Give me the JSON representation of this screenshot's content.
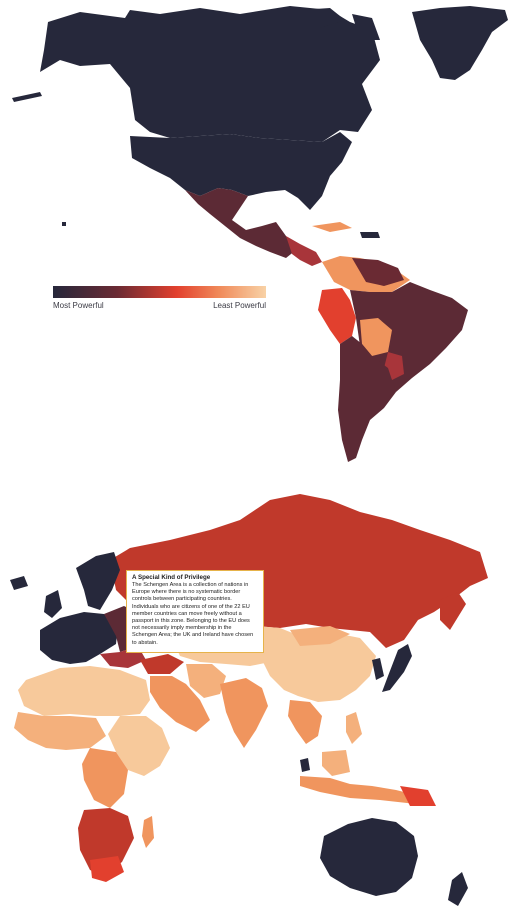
{
  "legend": {
    "min_label": "Most Powerful",
    "max_label": "Least Powerful",
    "scale_colors": [
      "#26283b",
      "#6a2a33",
      "#e2402e",
      "#f08a5a",
      "#f8d2a6"
    ]
  },
  "callout": {
    "title": "A Special Kind of Privilege",
    "body": "The Schengen Area is a collection of nations in Europe where there is no systematic border controls between participating countries. Individuals who are citizens of one of the 22 EU member countries can move freely without a passport in this zone. Belonging to the EU does not necessarily imply membership in the Schengen Area; the UK and Ireland have chosen to abstain."
  },
  "colors": {
    "most_powerful": "#26283b",
    "high": "#5c2a35",
    "mid": "#c0392b",
    "low": "#f0955e",
    "least_powerful": "#f7c99b",
    "callout_border": "#e6b34a"
  }
}
